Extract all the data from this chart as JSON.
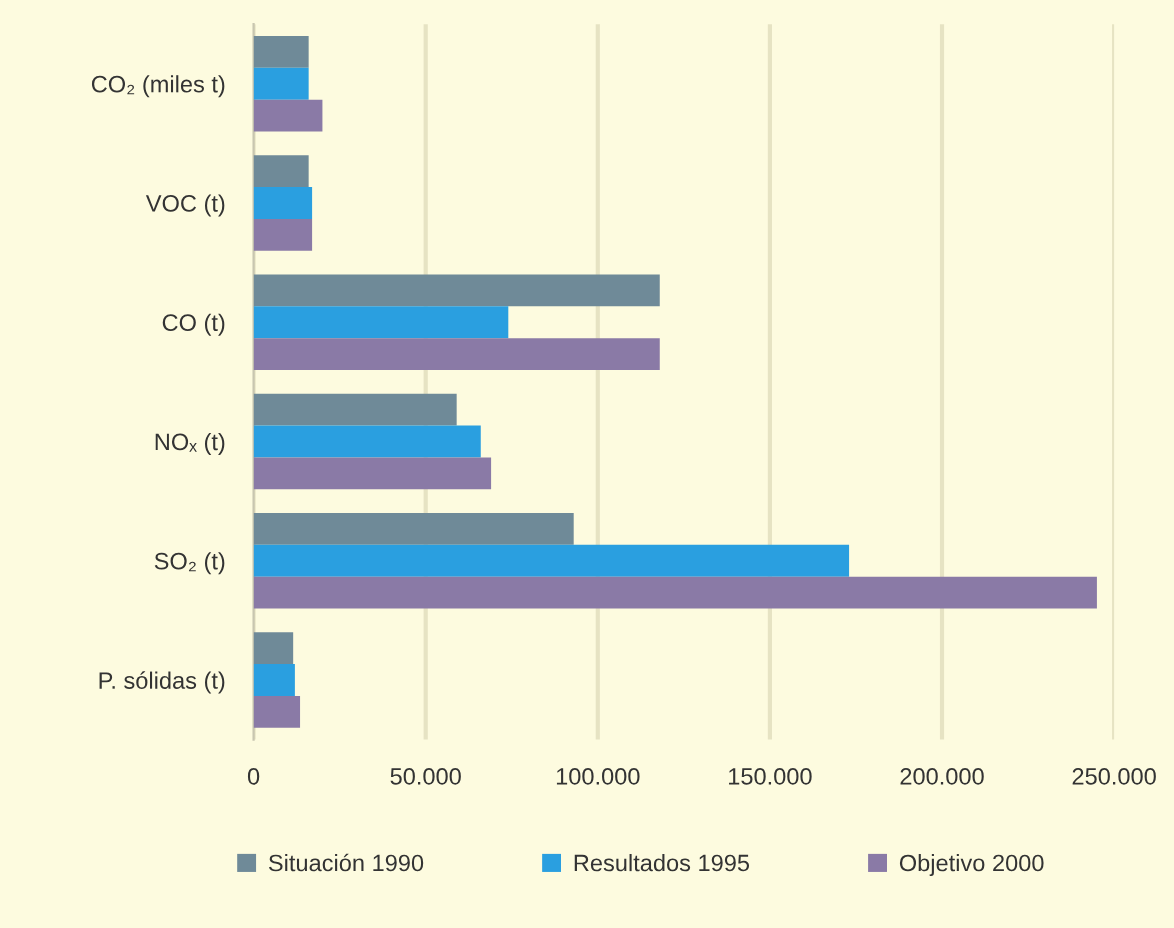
{
  "chart_data": {
    "type": "bar",
    "orientation": "horizontal",
    "categories": [
      "CO₂ (miles t)",
      "VOC (t)",
      "CO (t)",
      "NOₓ (t)",
      "SO₂ (t)",
      "P. sólidas (t)"
    ],
    "series": [
      {
        "name": "Situación 1990",
        "color": "#6f8a98",
        "values": [
          16000,
          16000,
          118000,
          59000,
          93000,
          11500
        ]
      },
      {
        "name": "Resultados 1995",
        "color": "#2a9fe0",
        "values": [
          16000,
          17000,
          74000,
          66000,
          173000,
          12000
        ]
      },
      {
        "name": "Objetivo 2000",
        "color": "#8a7aa6",
        "values": [
          20000,
          17000,
          118000,
          69000,
          245000,
          13500
        ]
      }
    ],
    "xlim": [
      0,
      250000
    ],
    "xticks": [
      0,
      {
        "value": 50000,
        "label": "50.000"
      },
      {
        "value": 100000,
        "label": "100.000"
      },
      {
        "value": 150000,
        "label": "150.000"
      },
      {
        "value": 200000,
        "label": "200.000"
      },
      {
        "value": 250000,
        "label": "250.000"
      }
    ],
    "grid": "x",
    "legend": "bottom"
  }
}
